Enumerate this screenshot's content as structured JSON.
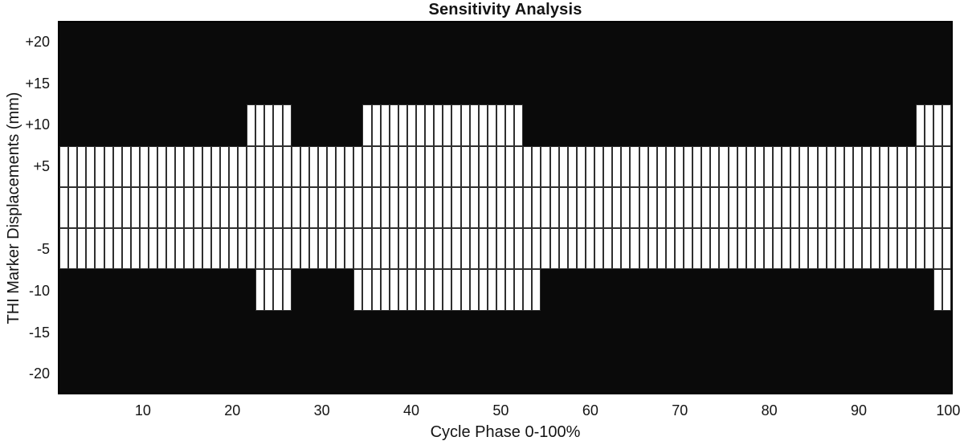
{
  "chart_data": {
    "type": "heatmap",
    "title": "Sensitivity Analysis",
    "xlabel": "Cycle Phase 0-100%",
    "ylabel": "THI Marker Displacements (mm)",
    "x_range": [
      1,
      100
    ],
    "n_columns": 100,
    "x_tick_values": [
      10,
      20,
      30,
      40,
      50,
      60,
      70,
      80,
      90,
      100
    ],
    "y_tick_labels_shown": [
      "+20",
      "+15",
      "+10",
      "+5",
      "-5",
      "-10",
      "-15",
      "-20"
    ],
    "row_height_mm": 5,
    "y_range_mm": [
      -22.5,
      22.5
    ],
    "grid": "cell borders visible on white cells only",
    "legend_position": "none",
    "colors": {
      "cell_on": "#ffffff",
      "cell_off": "#0a0a0a",
      "grid_line": "#2f2f2f",
      "text": "#141414"
    },
    "rows": [
      {
        "tick_label": "+20",
        "center_mm": 20,
        "white_ranges": []
      },
      {
        "tick_label": "+15",
        "center_mm": 15,
        "white_ranges": []
      },
      {
        "tick_label": "+10",
        "center_mm": 10,
        "white_ranges": [
          [
            22,
            26
          ],
          [
            35,
            52
          ],
          [
            97,
            100
          ]
        ]
      },
      {
        "tick_label": "+5",
        "center_mm": 5,
        "white_ranges": [
          [
            1,
            100
          ]
        ]
      },
      {
        "tick_label": "",
        "center_mm": 0,
        "white_ranges": [
          [
            1,
            100
          ]
        ]
      },
      {
        "tick_label": "-5",
        "center_mm": -5,
        "white_ranges": [
          [
            1,
            100
          ]
        ]
      },
      {
        "tick_label": "-10",
        "center_mm": -10,
        "white_ranges": [
          [
            23,
            26
          ],
          [
            34,
            54
          ],
          [
            99,
            100
          ]
        ]
      },
      {
        "tick_label": "-15",
        "center_mm": -15,
        "white_ranges": []
      },
      {
        "tick_label": "-20",
        "center_mm": -20,
        "white_ranges": []
      }
    ]
  }
}
